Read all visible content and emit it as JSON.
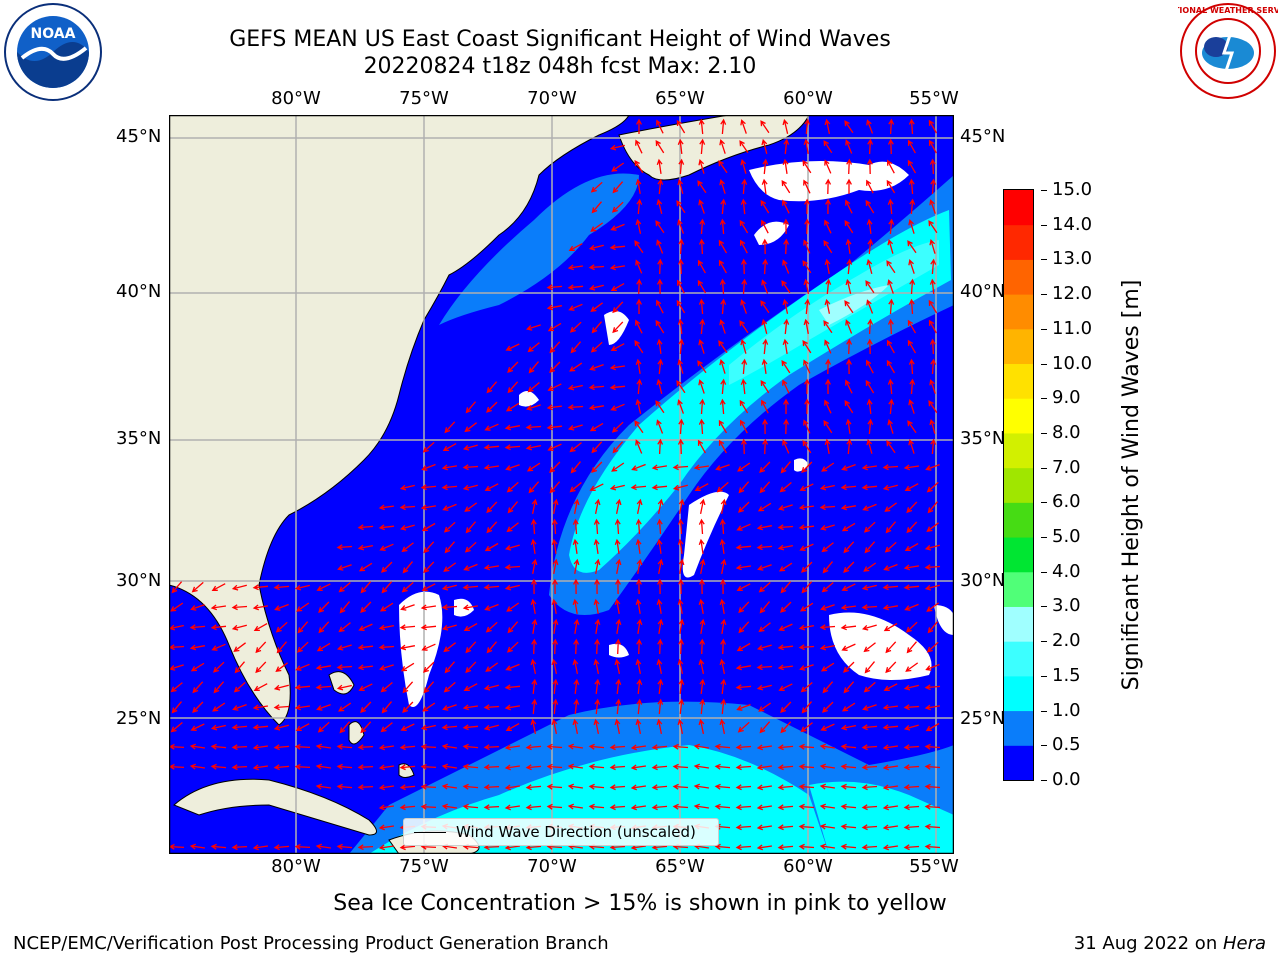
{
  "title": {
    "line1": "GEFS MEAN US East Coast Significant Height of Wind Waves",
    "line2": "20220824 t18z 048h fcst   Max: 2.10"
  },
  "map": {
    "lon_labels": [
      "80°W",
      "75°W",
      "70°W",
      "65°W",
      "60°W",
      "55°W"
    ],
    "lat_labels": [
      "45°N",
      "40°N",
      "35°N",
      "30°N",
      "25°N"
    ],
    "land_color": "#eeeedc",
    "legend_label": "Wind Wave Direction (unscaled)",
    "arrow_color": "#ff0000"
  },
  "colorbar": {
    "label": "Significant Height of Wind Waves [m]",
    "ticks": [
      "0.0",
      "0.5",
      "1.0",
      "1.5",
      "2.0",
      "3.0",
      "4.0",
      "5.0",
      "6.0",
      "7.0",
      "8.0",
      "9.0",
      "10.0",
      "11.0",
      "12.0",
      "13.0",
      "14.0",
      "15.0"
    ],
    "colors": [
      "#0000ff",
      "#0a7dfa",
      "#00ffff",
      "#3cffff",
      "#a0ffff",
      "#50ff78",
      "#00e632",
      "#46dc14",
      "#a0e600",
      "#d2f000",
      "#ffff00",
      "#ffe100",
      "#ffb400",
      "#ff8c00",
      "#ff6400",
      "#ff2800",
      "#ff0000"
    ]
  },
  "logos": {
    "left": "NOAA",
    "right": "NATIONAL WEATHER SERVICE"
  },
  "footer": {
    "note": "Sea Ice Concentration > 15% is shown in pink to yellow",
    "left": "NCEP/EMC/Verification Post Processing Product Generation Branch",
    "right_date": "31 Aug 2022 on ",
    "right_machine": "Hera"
  }
}
